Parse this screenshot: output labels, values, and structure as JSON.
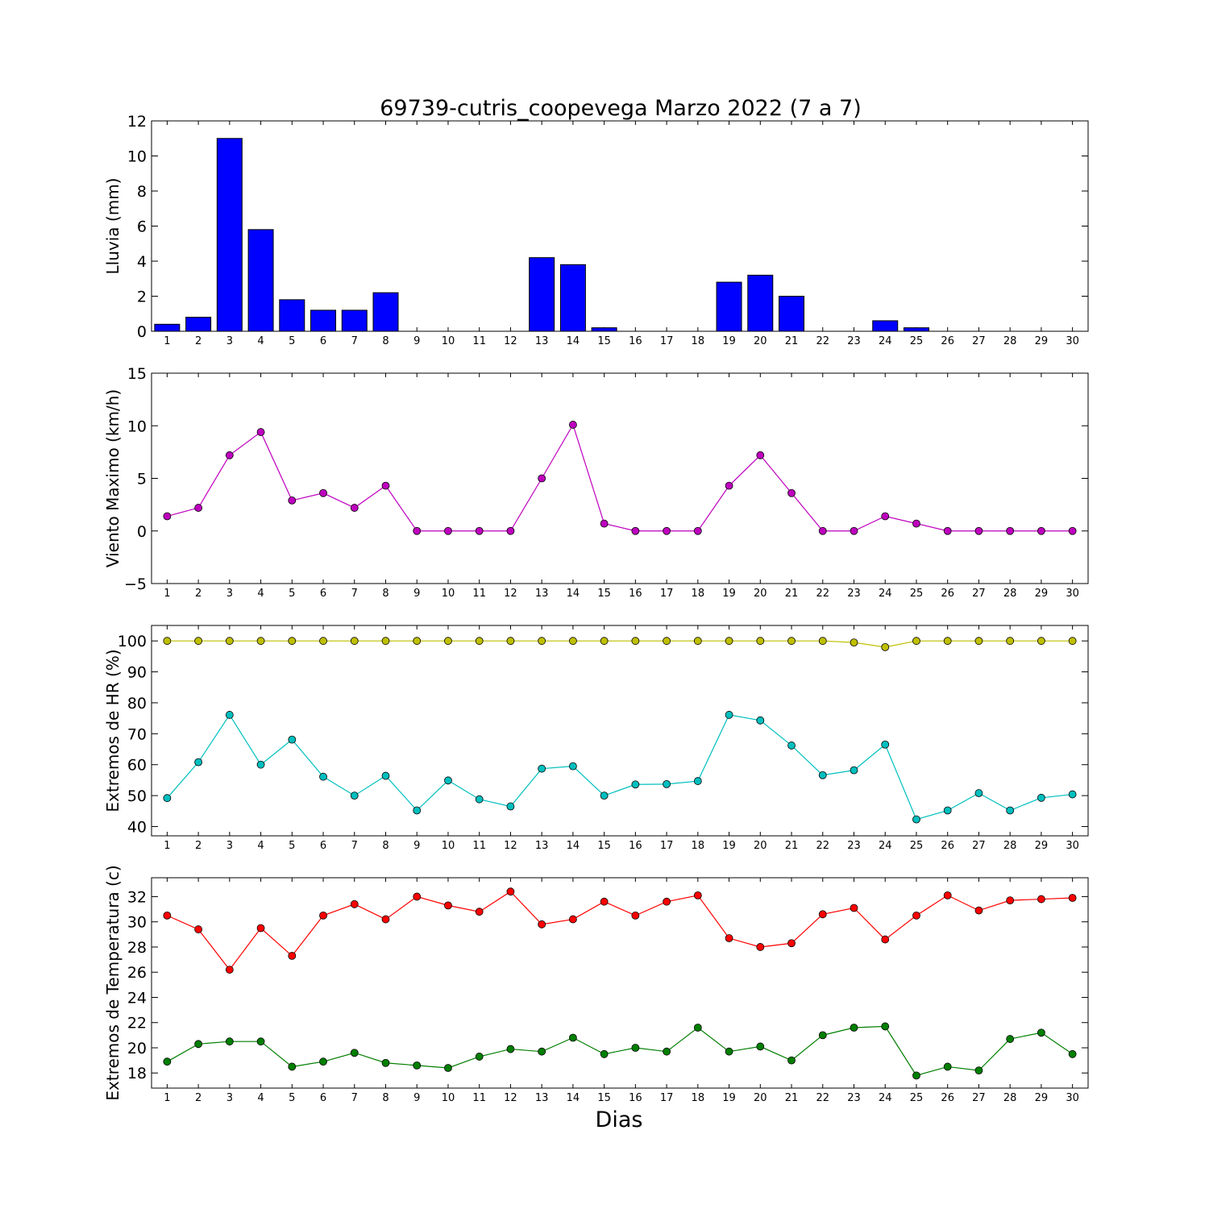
{
  "title": "69739-cutris_coopevega Marzo 2022  (7 a 7)",
  "xlabel": "Dias",
  "chart_data": [
    {
      "type": "bar",
      "ylabel": "Lluvia (mm)",
      "ylim": [
        0,
        12
      ],
      "yticks": [
        0,
        2,
        4,
        6,
        8,
        10,
        12
      ],
      "ytick_labels": [
        "0",
        "2",
        "4",
        "6",
        "8",
        "10",
        "12"
      ],
      "x": [
        1,
        2,
        3,
        4,
        5,
        6,
        7,
        8,
        9,
        10,
        11,
        12,
        13,
        14,
        15,
        16,
        17,
        18,
        19,
        20,
        21,
        22,
        23,
        24,
        25,
        26,
        27,
        28,
        29,
        30
      ],
      "series": [
        {
          "color": "#0000ff",
          "values": [
            0.4,
            0.8,
            11.0,
            5.8,
            1.8,
            1.2,
            1.2,
            2.2,
            0,
            0,
            0,
            0,
            4.2,
            3.8,
            0.2,
            0,
            0,
            0,
            2.8,
            3.2,
            2.0,
            0,
            0,
            0.6,
            0.2,
            0,
            0,
            0,
            0,
            0
          ]
        }
      ]
    },
    {
      "type": "line",
      "ylabel": "Viento Maximo (km/h)",
      "ylim": [
        -5,
        15
      ],
      "yticks": [
        -5,
        0,
        5,
        10,
        15
      ],
      "ytick_labels": [
        "−5",
        "0",
        "5",
        "10",
        "15"
      ],
      "x": [
        1,
        2,
        3,
        4,
        5,
        6,
        7,
        8,
        9,
        10,
        11,
        12,
        13,
        14,
        15,
        16,
        17,
        18,
        19,
        20,
        21,
        22,
        23,
        24,
        25,
        26,
        27,
        28,
        29,
        30
      ],
      "series": [
        {
          "color": "#bf00bf",
          "values": [
            1.4,
            2.2,
            7.2,
            9.4,
            2.9,
            3.6,
            2.2,
            4.3,
            0,
            0,
            0,
            0,
            5.0,
            10.1,
            0.7,
            0,
            0,
            0,
            4.3,
            7.2,
            3.6,
            0,
            0,
            1.4,
            0.7,
            0,
            0,
            0,
            0,
            0
          ]
        }
      ]
    },
    {
      "type": "line",
      "ylabel": "Extremos de HR (%)",
      "ylim": [
        37,
        105
      ],
      "yticks": [
        40,
        50,
        60,
        70,
        80,
        90,
        100
      ],
      "ytick_labels": [
        "40",
        "50",
        "60",
        "70",
        "80",
        "90",
        "100"
      ],
      "x": [
        1,
        2,
        3,
        4,
        5,
        6,
        7,
        8,
        9,
        10,
        11,
        12,
        13,
        14,
        15,
        16,
        17,
        18,
        19,
        20,
        21,
        22,
        23,
        24,
        25,
        26,
        27,
        28,
        29,
        30
      ],
      "series": [
        {
          "color": "#bfbf00",
          "values": [
            100,
            100,
            100,
            100,
            100,
            100,
            100,
            100,
            100,
            100,
            100,
            100,
            100,
            100,
            100,
            100,
            100,
            100,
            100,
            100,
            100,
            100,
            99.5,
            98,
            100,
            100,
            100,
            100,
            100,
            100
          ]
        },
        {
          "color": "#00bfbf",
          "values": [
            49.2,
            60.8,
            76.1,
            60,
            68.1,
            56.1,
            50,
            56.4,
            45.2,
            54.9,
            48.8,
            46.5,
            58.7,
            59.5,
            50,
            53.6,
            53.7,
            54.7,
            76.1,
            74.3,
            66.2,
            56.6,
            58.2,
            66.5,
            42.3,
            45.2,
            50.8,
            45.2,
            49.3,
            50.4
          ]
        }
      ]
    },
    {
      "type": "line",
      "ylabel": "Extremos de Temperatura (c)",
      "ylim": [
        16.8,
        33.5
      ],
      "yticks": [
        18,
        20,
        22,
        24,
        26,
        28,
        30,
        32
      ],
      "ytick_labels": [
        "18",
        "20",
        "22",
        "24",
        "26",
        "28",
        "30",
        "32"
      ],
      "x": [
        1,
        2,
        3,
        4,
        5,
        6,
        7,
        8,
        9,
        10,
        11,
        12,
        13,
        14,
        15,
        16,
        17,
        18,
        19,
        20,
        21,
        22,
        23,
        24,
        25,
        26,
        27,
        28,
        29,
        30
      ],
      "series": [
        {
          "color": "#ff0000",
          "values": [
            30.5,
            29.4,
            26.2,
            29.5,
            27.3,
            30.5,
            31.4,
            30.2,
            32.0,
            31.3,
            30.8,
            32.4,
            29.8,
            30.2,
            31.6,
            30.5,
            31.6,
            32.1,
            28.7,
            28.0,
            28.3,
            30.6,
            31.1,
            28.6,
            30.5,
            32.1,
            30.9,
            31.7,
            31.8,
            31.9
          ]
        },
        {
          "color": "#007f00",
          "values": [
            18.9,
            20.3,
            20.5,
            20.5,
            18.5,
            18.9,
            19.6,
            18.8,
            18.6,
            18.4,
            19.3,
            19.9,
            19.7,
            20.8,
            19.5,
            20.0,
            19.7,
            21.6,
            19.7,
            20.1,
            19.0,
            21.0,
            21.6,
            21.7,
            17.8,
            18.5,
            18.2,
            20.7,
            21.2,
            19.5
          ]
        }
      ]
    }
  ]
}
